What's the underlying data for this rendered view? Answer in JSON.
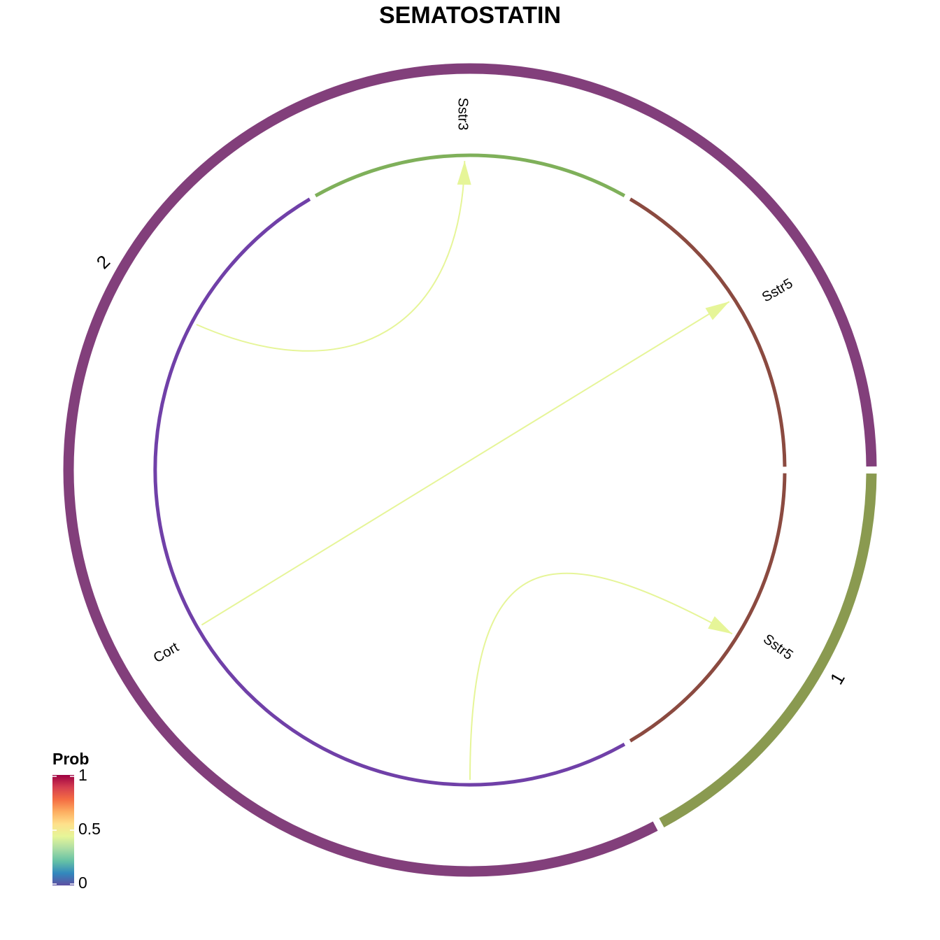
{
  "chart_data": {
    "type": "chord",
    "title": "SEMATOSTATIN",
    "groups": [
      {
        "label": "1",
        "color": "#8a9a50"
      },
      {
        "label": "2",
        "color": "#823f7b"
      }
    ],
    "sectors": [
      {
        "label": "Sstr5",
        "group": "1",
        "color": "#8b4a40",
        "start_deg": 0,
        "end_deg": 60
      },
      {
        "label": "Sstr5",
        "group": "2",
        "color": "#8b4a40",
        "start_deg": 300,
        "end_deg": 360
      },
      {
        "label": "Sstr3",
        "group": "2",
        "color": "#7fb05a",
        "start_deg": 240,
        "end_deg": 300
      },
      {
        "label": "Cort",
        "group": "2",
        "color": "#7040a8",
        "start_deg": 60,
        "end_deg": 240
      }
    ],
    "links": [
      {
        "from": "Cort",
        "to": "Sstr3",
        "prob": 0.5
      },
      {
        "from": "Cort",
        "to": "Sstr5",
        "prob": 0.5
      },
      {
        "from": "Cort",
        "to": "Sstr5",
        "prob": 0.5
      }
    ],
    "legend": {
      "title": "Prob",
      "min": 0,
      "max": 1,
      "ticks": [
        "0",
        "0.5",
        "1"
      ],
      "palette": "Spectral",
      "colors": [
        "#5e4fa2",
        "#3288bd",
        "#66c2a5",
        "#abdda4",
        "#e6f598",
        "#fee08b",
        "#fdae61",
        "#f46d43",
        "#d53e4f",
        "#9e0142"
      ]
    },
    "link_color": "#e6f598"
  }
}
